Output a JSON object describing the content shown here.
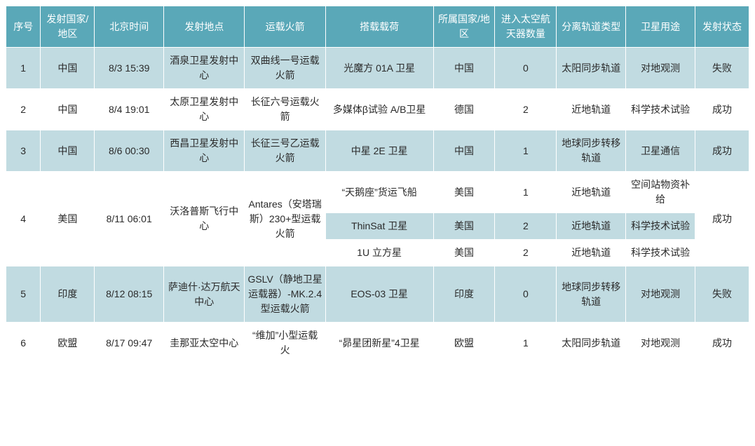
{
  "colors": {
    "header_bg": "#5aa8b8",
    "header_fg": "#ffffff",
    "band_blue": "#c1dbe1",
    "band_white": "#ffffff",
    "cell_fg": "#2a2a2a",
    "border": "#ffffff"
  },
  "headers": {
    "idx": "序号",
    "launch_country": "发射国家/地区",
    "beijing_time": "北京时间",
    "launch_site": "发射地点",
    "rocket": "运载火箭",
    "payload": "搭载载荷",
    "owner_country": "所属国家/地区",
    "spacecraft_count": "进入太空航天器数量",
    "orbit_type": "分离轨道类型",
    "sat_use": "卫星用途",
    "launch_status": "发射状态"
  },
  "rows": [
    {
      "band": "blue",
      "idx": "1",
      "launch_country": "中国",
      "beijing_time": "8/3 15:39",
      "launch_site": "酒泉卫星发射中心",
      "rocket": "双曲线一号运载火箭",
      "payloads": [
        {
          "payload": "光魔方 01A 卫星",
          "owner_country": "中国",
          "spacecraft_count": "0",
          "orbit_type": "太阳同步轨道",
          "sat_use": "对地观测"
        }
      ],
      "launch_status": "失败"
    },
    {
      "band": "white",
      "idx": "2",
      "launch_country": "中国",
      "beijing_time": "8/4 19:01",
      "launch_site": "太原卫星发射中心",
      "rocket": "长征六号运载火箭",
      "payloads": [
        {
          "payload": "多媒体β试验 A/B卫星",
          "owner_country": "德国",
          "spacecraft_count": "2",
          "orbit_type": "近地轨道",
          "sat_use": "科学技术试验"
        }
      ],
      "launch_status": "成功"
    },
    {
      "band": "blue",
      "idx": "3",
      "launch_country": "中国",
      "beijing_time": "8/6 00:30",
      "launch_site": "西昌卫星发射中心",
      "rocket": "长征三号乙运载火箭",
      "payloads": [
        {
          "payload": "中星 2E 卫星",
          "owner_country": "中国",
          "spacecraft_count": "1",
          "orbit_type": "地球同步转移轨道",
          "sat_use": "卫星通信"
        }
      ],
      "launch_status": "成功"
    },
    {
      "band": "white",
      "idx": "4",
      "launch_country": "美国",
      "beijing_time": "8/11 06:01",
      "launch_site": "沃洛普斯飞行中心",
      "rocket": "Antares（安塔瑞斯）230+型运载火箭",
      "payloads": [
        {
          "payload": "“天鹅座”货运飞船",
          "owner_country": "美国",
          "spacecraft_count": "1",
          "orbit_type": "近地轨道",
          "sat_use": "空间站物资补给"
        },
        {
          "band": "blue",
          "payload": "ThinSat 卫星",
          "owner_country": "美国",
          "spacecraft_count": "2",
          "orbit_type": "近地轨道",
          "sat_use": "科学技术试验"
        },
        {
          "payload": "1U 立方星",
          "owner_country": "美国",
          "spacecraft_count": "2",
          "orbit_type": "近地轨道",
          "sat_use": "科学技术试验"
        }
      ],
      "launch_status": "成功"
    },
    {
      "band": "blue",
      "idx": "5",
      "launch_country": "印度",
      "beijing_time": "8/12 08:15",
      "launch_site": "萨迪什·达万航天中心",
      "rocket": "GSLV（静地卫星运载器）-MK.2.4 型运载火箭",
      "payloads": [
        {
          "payload": "EOS-03 卫星",
          "owner_country": "印度",
          "spacecraft_count": "0",
          "orbit_type": "地球同步转移轨道",
          "sat_use": "对地观测"
        }
      ],
      "launch_status": "失败"
    },
    {
      "band": "white",
      "idx": "6",
      "launch_country": "欧盟",
      "beijing_time": "8/17 09:47",
      "launch_site": "圭那亚太空中心",
      "rocket": "“维加”小型运载火",
      "payloads": [
        {
          "payload": "“昴星团新星”4卫星",
          "owner_country": "欧盟",
          "spacecraft_count": "1",
          "orbit_type": "太阳同步轨道",
          "sat_use": "对地观测"
        }
      ],
      "launch_status": "成功"
    }
  ]
}
